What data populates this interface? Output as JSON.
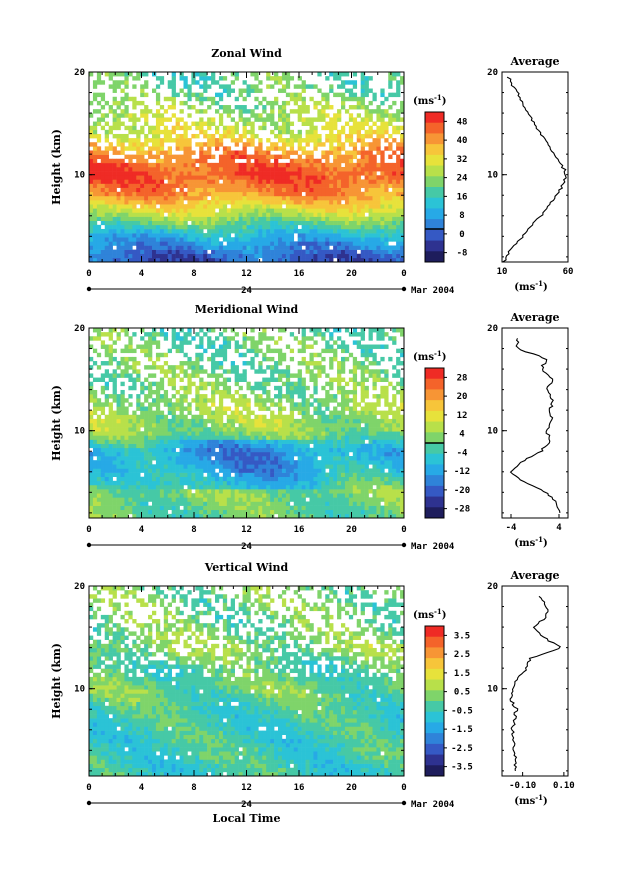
{
  "panels": [
    {
      "title": "Zonal Wind",
      "ylabel": "Height (km)",
      "y_ticks": [
        "20",
        "10"
      ],
      "x_ticks": [
        "0",
        "4",
        "8",
        "12",
        "16",
        "20",
        "0"
      ],
      "day_label": "24",
      "month_label": "Mar 2004",
      "cb_unit": "(ms",
      "cb_unit_exp": "-1",
      "cb_unit_close": ")",
      "cb_ticks": [
        "48",
        "40",
        "32",
        "24",
        "16",
        "8",
        "0",
        "-8"
      ],
      "avg_title": "Average",
      "avg_y_ticks": [
        "20",
        "10"
      ],
      "avg_x_ticks": [
        "10",
        "60"
      ],
      "avg_unit": "(ms",
      "avg_unit_exp": "-1",
      "avg_unit_close": ")"
    },
    {
      "title": "Meridional Wind",
      "ylabel": "Height (km)",
      "y_ticks": [
        "20",
        "10"
      ],
      "x_ticks": [
        "0",
        "4",
        "8",
        "12",
        "16",
        "20",
        "0"
      ],
      "day_label": "24",
      "month_label": "Mar 2004",
      "cb_unit": "(ms",
      "cb_unit_exp": "-1",
      "cb_unit_close": ")",
      "cb_ticks": [
        "28",
        "20",
        "12",
        "4",
        "-4",
        "-12",
        "-20",
        "-28"
      ],
      "avg_title": "Average",
      "avg_y_ticks": [
        "20",
        "10"
      ],
      "avg_x_ticks": [
        "-4",
        "4"
      ],
      "avg_unit": "(ms",
      "avg_unit_exp": "-1",
      "avg_unit_close": ")"
    },
    {
      "title": "Vertical Wind",
      "ylabel": "Height (km)",
      "xlabel": "Local Time",
      "y_ticks": [
        "20",
        "10"
      ],
      "x_ticks": [
        "0",
        "4",
        "8",
        "12",
        "16",
        "20",
        "0"
      ],
      "day_label": "24",
      "month_label": "Mar 2004",
      "cb_unit": "(ms",
      "cb_unit_exp": "-1",
      "cb_unit_close": ")",
      "cb_ticks": [
        "3.5",
        "2.5",
        "1.5",
        "0.5",
        "-0.5",
        "-1.5",
        "-2.5",
        "-3.5"
      ],
      "avg_title": "Average",
      "avg_y_ticks": [
        "20",
        "10"
      ],
      "avg_x_ticks": [
        "-0.10",
        "0.10"
      ],
      "avg_unit": "(ms",
      "avg_unit_exp": "-1",
      "avg_unit_close": ")"
    }
  ],
  "chart_data": [
    {
      "type": "heatmap",
      "title": "Zonal Wind",
      "xlabel": "",
      "ylabel": "Height (km)",
      "x_range_hours": [
        0,
        24
      ],
      "ylim_km": [
        1.5,
        20
      ],
      "colorbar": {
        "unit": "ms^-1",
        "range": [
          -12,
          52
        ],
        "ticks": [
          48,
          40,
          32,
          24,
          16,
          8,
          0,
          -8
        ]
      },
      "profile_km": [
        2,
        4,
        6,
        8,
        10,
        12,
        14,
        16,
        18
      ],
      "profile_values": [
        0,
        10,
        26,
        40,
        47,
        42,
        30,
        26,
        20
      ],
      "average_profile": {
        "title": "Average",
        "xlim": [
          10,
          60
        ],
        "heights_km": [
          1.5,
          2.5,
          4,
          5.5,
          7,
          8.5,
          10,
          11.5,
          13,
          14.5,
          16,
          17.5,
          18.5,
          19.5
        ],
        "values": [
          11,
          16,
          26,
          36,
          46,
          54,
          59,
          53,
          44,
          37,
          30,
          24,
          19,
          15
        ]
      }
    },
    {
      "type": "heatmap",
      "title": "Meridional Wind",
      "xlabel": "",
      "ylabel": "Height (km)",
      "x_range_hours": [
        0,
        24
      ],
      "ylim_km": [
        1.5,
        20
      ],
      "colorbar": {
        "unit": "ms^-1",
        "range": [
          -32,
          32
        ],
        "ticks": [
          28,
          20,
          12,
          4,
          -4,
          -12,
          -20,
          -28
        ]
      },
      "profile_km": [
        2,
        4,
        6,
        8,
        10,
        12,
        14,
        16,
        18
      ],
      "profile_values": [
        0,
        2,
        -6,
        -9,
        4,
        5,
        2,
        1,
        0
      ],
      "average_profile": {
        "title": "Average",
        "xlim": [
          -5.5,
          5.5
        ],
        "heights_km": [
          2,
          3,
          4,
          5,
          6,
          7,
          8,
          9,
          10,
          11,
          12,
          13,
          14,
          15,
          16,
          17,
          18,
          19
        ],
        "values": [
          4,
          3.5,
          2,
          -2,
          -4,
          -2,
          1,
          2.5,
          2,
          3,
          2.5,
          3,
          2,
          3,
          1,
          2,
          -3,
          -3
        ]
      }
    },
    {
      "type": "heatmap",
      "title": "Vertical Wind",
      "xlabel": "Local Time",
      "ylabel": "Height (km)",
      "x_range_hours": [
        0,
        24
      ],
      "ylim_km": [
        1.5,
        20
      ],
      "colorbar": {
        "unit": "ms^-1",
        "range": [
          -4,
          4
        ],
        "ticks": [
          3.5,
          2.5,
          1.5,
          0.5,
          -0.5,
          -1.5,
          -2.5,
          -3.5
        ]
      },
      "profile_km": [
        2,
        4,
        6,
        8,
        10,
        12,
        14,
        16,
        18
      ],
      "profile_values": [
        -0.5,
        -0.4,
        -0.5,
        -0.3,
        0.1,
        -0.2,
        0.4,
        0.1,
        0.2
      ],
      "average_profile": {
        "title": "Average",
        "xlim": [
          -0.2,
          0.12
        ],
        "heights_km": [
          2,
          3,
          4,
          5,
          6,
          7,
          8,
          9,
          10,
          11,
          12,
          13,
          14,
          15,
          16,
          17,
          18,
          19
        ],
        "values": [
          -0.14,
          -0.13,
          -0.15,
          -0.14,
          -0.15,
          -0.14,
          -0.13,
          -0.16,
          -0.15,
          -0.12,
          -0.08,
          -0.06,
          0.09,
          0.0,
          -0.04,
          0.01,
          0.02,
          -0.02
        ]
      }
    }
  ]
}
